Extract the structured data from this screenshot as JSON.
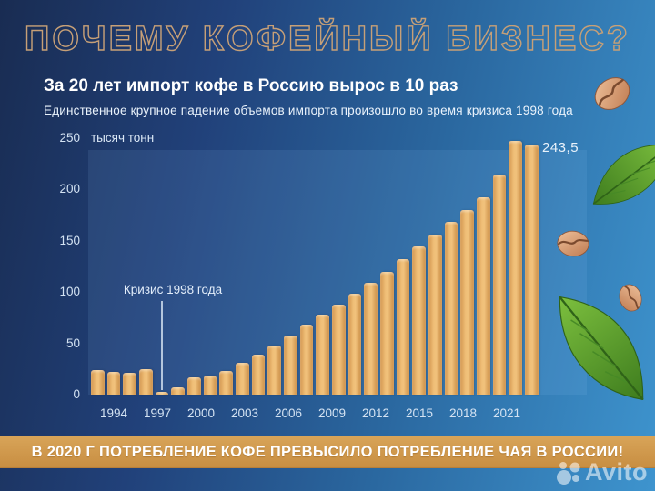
{
  "title": "ПОЧЕМУ КОФЕЙНЫЙ БИЗНЕС?",
  "subtitle": "За 20 лет импорт кофе в Россию вырос в 10 раз",
  "subtitle2": "Единственное крупное падение объемов импорта произошло во время кризиса 1998 года",
  "banner": "В 2020 Г ПОТРЕБЛЕНИЕ КОФЕ ПРЕВЫСИЛО ПОТРЕБЛЕНИЕ ЧАЯ В РОССИИ!",
  "watermark": {
    "label": "Avito"
  },
  "chart_data": {
    "type": "bar",
    "unit_label": "тысяч тонн",
    "ylim": [
      0,
      250
    ],
    "y_ticks": [
      250,
      200,
      150,
      100,
      50,
      0
    ],
    "x_tick_labels": [
      "1994",
      "1997",
      "2000",
      "2003",
      "2006",
      "2009",
      "2012",
      "2015",
      "2018",
      "2021"
    ],
    "annotation": "Кризис 1998 года",
    "last_value_label": "243,5",
    "years": [
      "1994",
      "1995",
      "1996",
      "1997",
      "1998",
      "1999",
      "2000",
      "2001",
      "2002",
      "2003",
      "2004",
      "2005",
      "2006",
      "2007",
      "2008",
      "2009",
      "2010",
      "2011",
      "2012",
      "2013",
      "2014",
      "2015",
      "2016",
      "2017",
      "2018",
      "2019",
      "2020",
      "2021"
    ],
    "values": [
      24,
      22,
      21,
      25,
      3,
      7,
      17,
      19,
      23,
      31,
      39,
      48,
      58,
      68,
      78,
      88,
      98,
      109,
      120,
      132,
      144,
      156,
      168,
      180,
      192,
      214,
      247,
      243.5
    ],
    "legend": [],
    "grid": false
  },
  "colors": {
    "background_left": "#192c52",
    "background_right": "#3e94ce",
    "bar": "#eebb74",
    "banner": "#d09a4e",
    "title_outline": "#c7a077",
    "text": "#ffffff"
  },
  "icons": [
    "coffee-bean-icon",
    "coffee-leaf-icon",
    "avito-logo-icon"
  ]
}
